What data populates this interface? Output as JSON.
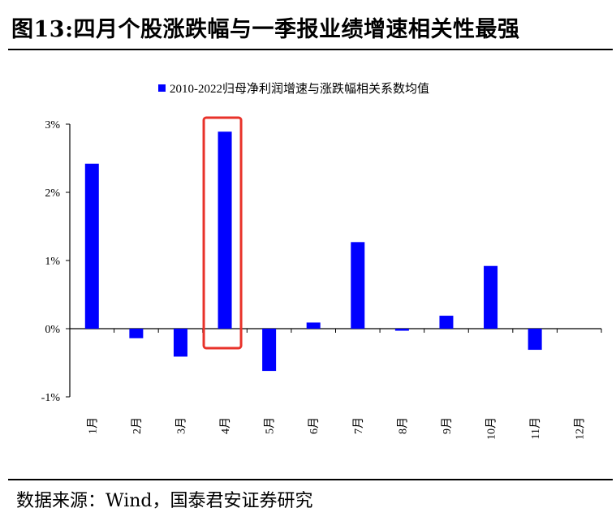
{
  "title": "图13:四月个股涨跌幅与一季报业绩增速相关性最强",
  "source": "数据来源：Wind，国泰君安证券研究",
  "colors": {
    "bar": "#0000FF",
    "highlight": "#E8322A",
    "axis": "#000000"
  },
  "chart_data": {
    "type": "bar",
    "title": "",
    "xlabel": "",
    "ylabel": "",
    "legend": {
      "position": "top-center",
      "label": "2010-2022归母净利润增速与涨跌幅相关系数均值"
    },
    "categories": [
      "1月",
      "2月",
      "3月",
      "4月",
      "5月",
      "6月",
      "7月",
      "8月",
      "9月",
      "10月",
      "11月",
      "12月"
    ],
    "series": [
      {
        "name": "2010-2022归母净利润增速与涨跌幅相关系数均值",
        "values": [
          2.42,
          -0.14,
          -0.41,
          2.89,
          -0.62,
          0.09,
          1.27,
          -0.03,
          0.19,
          0.92,
          -0.31,
          0.0
        ]
      }
    ],
    "ylim": [
      -1,
      3
    ],
    "yticks": [
      -1,
      0,
      1,
      2,
      3
    ],
    "ytick_labels": [
      "-1%",
      "0%",
      "1%",
      "2%",
      "3%"
    ],
    "highlight_category": "4月"
  }
}
